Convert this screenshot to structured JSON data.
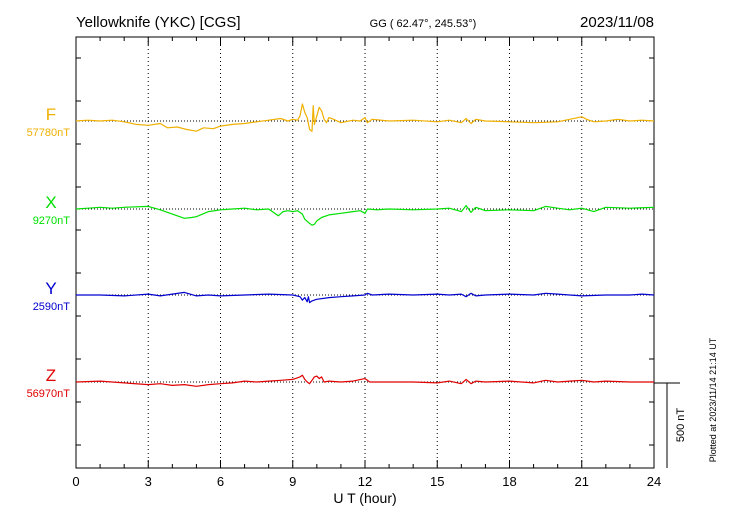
{
  "header": {
    "station": "Yellowknife (YKC)  [CGS]",
    "coords": "GG ( 62.47°, 245.53°)",
    "date": "2023/11/08"
  },
  "footer": {
    "xlabel": "U T (hour)",
    "plotted": "Plotted at 2023/11/14 21:14 UT",
    "scale_label": "500 nT"
  },
  "chart_data": {
    "type": "line",
    "title": "",
    "xlabel": "U T (hour)",
    "xlim": [
      0,
      24
    ],
    "xticks": [
      0,
      3,
      6,
      9,
      12,
      15,
      18,
      21,
      24
    ],
    "x_minor_step_hours": 1,
    "grid": true,
    "scale_bar_nT": 500,
    "series": [
      {
        "name": "F",
        "baseline_label": "57780nT",
        "color": "#f0b000",
        "points": [
          [
            0,
            0
          ],
          [
            0.5,
            5
          ],
          [
            1,
            0
          ],
          [
            1.5,
            5
          ],
          [
            2,
            -5
          ],
          [
            2.5,
            -20
          ],
          [
            3,
            -25
          ],
          [
            3.5,
            -15
          ],
          [
            3.8,
            -40
          ],
          [
            4.2,
            -35
          ],
          [
            4.6,
            -50
          ],
          [
            5,
            -60
          ],
          [
            5.3,
            -40
          ],
          [
            5.7,
            -45
          ],
          [
            6,
            -30
          ],
          [
            6.5,
            -20
          ],
          [
            7,
            -15
          ],
          [
            7.5,
            -5
          ],
          [
            8,
            5
          ],
          [
            8.5,
            15
          ],
          [
            8.8,
            0
          ],
          [
            9,
            10
          ],
          [
            9.2,
            5
          ],
          [
            9.3,
            30
          ],
          [
            9.4,
            100
          ],
          [
            9.5,
            50
          ],
          [
            9.6,
            20
          ],
          [
            9.7,
            -50
          ],
          [
            9.8,
            -60
          ],
          [
            9.85,
            90
          ],
          [
            9.9,
            -20
          ],
          [
            10,
            30
          ],
          [
            10.1,
            80
          ],
          [
            10.2,
            60
          ],
          [
            10.3,
            10
          ],
          [
            10.4,
            -10
          ],
          [
            10.5,
            20
          ],
          [
            10.7,
            10
          ],
          [
            11,
            -10
          ],
          [
            11.5,
            5
          ],
          [
            11.8,
            0
          ],
          [
            12,
            20
          ],
          [
            12.1,
            -10
          ],
          [
            12.3,
            10
          ],
          [
            13,
            0
          ],
          [
            14,
            5
          ],
          [
            15,
            -5
          ],
          [
            15.5,
            5
          ],
          [
            16,
            -10
          ],
          [
            16.2,
            15
          ],
          [
            16.4,
            -15
          ],
          [
            16.6,
            10
          ],
          [
            17,
            0
          ],
          [
            18,
            -5
          ],
          [
            19,
            -10
          ],
          [
            20,
            -5
          ],
          [
            20.5,
            10
          ],
          [
            21,
            25
          ],
          [
            21.2,
            10
          ],
          [
            21.5,
            -5
          ],
          [
            22,
            0
          ],
          [
            22.5,
            10
          ],
          [
            23,
            0
          ],
          [
            23.5,
            5
          ],
          [
            24,
            0
          ]
        ]
      },
      {
        "name": "X",
        "baseline_label": "9270nT",
        "color": "#00e000",
        "points": [
          [
            0,
            0
          ],
          [
            0.5,
            5
          ],
          [
            1,
            10
          ],
          [
            1.5,
            5
          ],
          [
            2,
            10
          ],
          [
            3,
            15
          ],
          [
            3.5,
            -5
          ],
          [
            4,
            -30
          ],
          [
            4.5,
            -55
          ],
          [
            4.8,
            -50
          ],
          [
            5,
            -45
          ],
          [
            5.5,
            -15
          ],
          [
            6,
            -5
          ],
          [
            6.5,
            0
          ],
          [
            7,
            5
          ],
          [
            7.5,
            -5
          ],
          [
            8,
            0
          ],
          [
            8.2,
            -20
          ],
          [
            8.4,
            -40
          ],
          [
            8.6,
            -15
          ],
          [
            8.8,
            -10
          ],
          [
            9,
            -15
          ],
          [
            9.2,
            -10
          ],
          [
            9.4,
            -30
          ],
          [
            9.5,
            -60
          ],
          [
            9.7,
            -85
          ],
          [
            9.8,
            -95
          ],
          [
            9.9,
            -90
          ],
          [
            10,
            -70
          ],
          [
            10.2,
            -50
          ],
          [
            10.5,
            -35
          ],
          [
            11,
            -25
          ],
          [
            11.5,
            -15
          ],
          [
            11.8,
            -10
          ],
          [
            12,
            -25
          ],
          [
            12.1,
            0
          ],
          [
            12.5,
            -5
          ],
          [
            13,
            0
          ],
          [
            14,
            -5
          ],
          [
            15,
            0
          ],
          [
            15.5,
            5
          ],
          [
            16,
            -15
          ],
          [
            16.2,
            20
          ],
          [
            16.4,
            -20
          ],
          [
            16.6,
            10
          ],
          [
            17,
            -10
          ],
          [
            18,
            -5
          ],
          [
            19,
            -10
          ],
          [
            19.5,
            15
          ],
          [
            20,
            5
          ],
          [
            20.5,
            -5
          ],
          [
            21,
            5
          ],
          [
            21.5,
            -15
          ],
          [
            22,
            10
          ],
          [
            23,
            5
          ],
          [
            24,
            10
          ]
        ]
      },
      {
        "name": "Y",
        "baseline_label": "2590nT",
        "color": "#0000d0",
        "points": [
          [
            0,
            0
          ],
          [
            1,
            0
          ],
          [
            2,
            -5
          ],
          [
            3,
            5
          ],
          [
            3.5,
            -5
          ],
          [
            4,
            5
          ],
          [
            4.5,
            15
          ],
          [
            5,
            -5
          ],
          [
            5.5,
            0
          ],
          [
            6,
            -5
          ],
          [
            7,
            0
          ],
          [
            8,
            5
          ],
          [
            9,
            0
          ],
          [
            9.3,
            -10
          ],
          [
            9.4,
            -30
          ],
          [
            9.5,
            -15
          ],
          [
            9.6,
            -40
          ],
          [
            9.65,
            -10
          ],
          [
            9.7,
            -45
          ],
          [
            9.8,
            -35
          ],
          [
            9.9,
            -30
          ],
          [
            10,
            -25
          ],
          [
            10.5,
            -15
          ],
          [
            11,
            -10
          ],
          [
            11.5,
            -5
          ],
          [
            12,
            0
          ],
          [
            12.1,
            10
          ],
          [
            12.3,
            0
          ],
          [
            13,
            5
          ],
          [
            14,
            0
          ],
          [
            15,
            5
          ],
          [
            15.5,
            0
          ],
          [
            16,
            5
          ],
          [
            16.2,
            -10
          ],
          [
            16.4,
            10
          ],
          [
            16.6,
            -5
          ],
          [
            17,
            0
          ],
          [
            18,
            5
          ],
          [
            19,
            0
          ],
          [
            19.5,
            10
          ],
          [
            20,
            5
          ],
          [
            20.5,
            0
          ],
          [
            21,
            -5
          ],
          [
            22,
            0
          ],
          [
            23,
            0
          ],
          [
            23.5,
            5
          ],
          [
            24,
            0
          ]
        ]
      },
      {
        "name": "Z",
        "baseline_label": "56970nT",
        "color": "#e00000",
        "points": [
          [
            0,
            0
          ],
          [
            1,
            5
          ],
          [
            2,
            -5
          ],
          [
            3,
            -15
          ],
          [
            3.5,
            -10
          ],
          [
            4,
            -20
          ],
          [
            4.5,
            -15
          ],
          [
            5,
            -25
          ],
          [
            5.5,
            -15
          ],
          [
            6,
            -10
          ],
          [
            6.5,
            -5
          ],
          [
            7,
            5
          ],
          [
            7.5,
            0
          ],
          [
            8,
            5
          ],
          [
            8.5,
            10
          ],
          [
            9,
            15
          ],
          [
            9.3,
            30
          ],
          [
            9.4,
            40
          ],
          [
            9.5,
            15
          ],
          [
            9.6,
            0
          ],
          [
            9.7,
            -10
          ],
          [
            9.8,
            10
          ],
          [
            9.9,
            30
          ],
          [
            10,
            35
          ],
          [
            10.1,
            20
          ],
          [
            10.2,
            30
          ],
          [
            10.3,
            0
          ],
          [
            10.5,
            5
          ],
          [
            11,
            0
          ],
          [
            11.5,
            5
          ],
          [
            12,
            20
          ],
          [
            12.2,
            0
          ],
          [
            13,
            0
          ],
          [
            14,
            0
          ],
          [
            15,
            -5
          ],
          [
            15.5,
            5
          ],
          [
            16,
            -10
          ],
          [
            16.2,
            15
          ],
          [
            16.4,
            -10
          ],
          [
            16.6,
            5
          ],
          [
            17,
            0
          ],
          [
            18,
            5
          ],
          [
            19,
            -5
          ],
          [
            19.5,
            10
          ],
          [
            20,
            0
          ],
          [
            20.5,
            5
          ],
          [
            21,
            10
          ],
          [
            21.5,
            0
          ],
          [
            22,
            5
          ],
          [
            23,
            0
          ],
          [
            24,
            0
          ]
        ]
      }
    ]
  }
}
